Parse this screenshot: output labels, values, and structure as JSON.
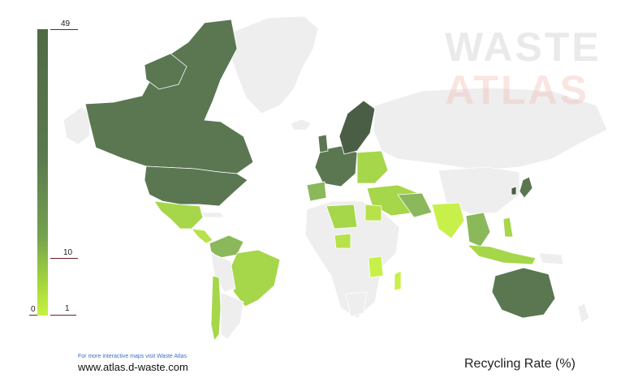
{
  "legend": {
    "ticks": [
      {
        "label": "49",
        "value": 49
      },
      {
        "label": "10",
        "value": 10
      },
      {
        "label": "1",
        "value": 1
      },
      {
        "label": "0",
        "value": 0
      }
    ]
  },
  "brand": {
    "line1": "WASTE",
    "line2": "ATLAS"
  },
  "footer": {
    "note": "For more interactive maps visit Waste Atlas",
    "url": "www.atlas.d-waste.com"
  },
  "title": "Recycling Rate (%)",
  "colors": {
    "no_data": "#eeeeee",
    "high": "#5a7752",
    "darkest": "#4a5e45",
    "mid": "#8bb85a",
    "low": "#a6d64a",
    "lowest": "#c8f04a"
  }
}
